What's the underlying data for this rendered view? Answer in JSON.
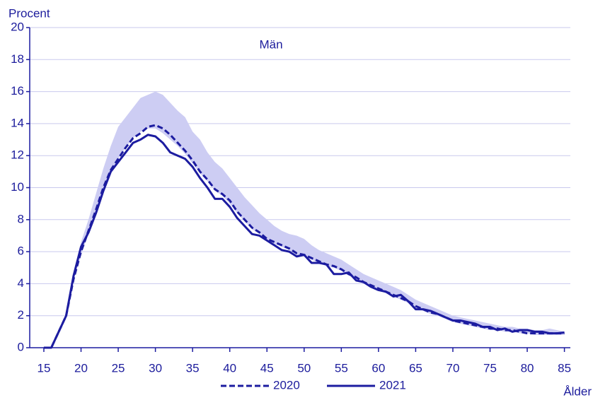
{
  "chart_data": {
    "type": "line",
    "annotation": "Män",
    "y_label": "Procent",
    "x_label": "Ålder",
    "x": [
      15,
      16,
      17,
      18,
      19,
      20,
      21,
      22,
      23,
      24,
      25,
      26,
      27,
      28,
      29,
      30,
      31,
      32,
      33,
      34,
      35,
      36,
      37,
      38,
      39,
      40,
      41,
      42,
      43,
      44,
      45,
      46,
      47,
      48,
      49,
      50,
      51,
      52,
      53,
      54,
      55,
      56,
      57,
      58,
      59,
      60,
      61,
      62,
      63,
      64,
      65,
      66,
      67,
      68,
      69,
      70,
      71,
      72,
      73,
      74,
      75,
      76,
      77,
      78,
      79,
      80,
      81,
      82,
      83,
      84,
      85
    ],
    "band": {
      "color": "#cdcdf3",
      "upper": [
        0,
        0,
        1,
        2.1,
        4.6,
        6.6,
        8,
        9.6,
        11.2,
        12.6,
        13.8,
        14.4,
        15.0,
        15.6,
        15.8,
        16.0,
        15.8,
        15.3,
        14.8,
        14.4,
        13.5,
        13.0,
        12.2,
        11.6,
        11.2,
        10.6,
        10.0,
        9.4,
        8.9,
        8.4,
        8.0,
        7.6,
        7.3,
        7.1,
        7.0,
        6.8,
        6.4,
        6.1,
        5.9,
        5.7,
        5.5,
        5.2,
        4.9,
        4.6,
        4.4,
        4.2,
        4.0,
        3.8,
        3.6,
        3.3,
        3.0,
        2.8,
        2.6,
        2.4,
        2.2,
        2.0,
        1.9,
        1.8,
        1.7,
        1.6,
        1.5,
        1.4,
        1.3,
        1.3,
        1.2,
        1.2,
        1.1,
        1.1,
        1.2,
        1.1,
        1.0
      ],
      "lower": [
        0,
        0,
        0.9,
        1.9,
        4.2,
        5.8,
        7.1,
        8.5,
        9.9,
        11.0,
        11.8,
        12.5,
        13.1,
        13.5,
        13.7,
        13.7,
        13.4,
        13.0,
        12.6,
        12.1,
        11.5,
        10.9,
        10.4,
        9.8,
        9.5,
        9.0,
        8.4,
        7.9,
        7.4,
        7.1,
        6.8,
        6.5,
        6.3,
        6.1,
        5.8,
        5.7,
        5.5,
        5.3,
        5.1,
        5.0,
        4.8,
        4.5,
        4.3,
        4.0,
        3.8,
        3.6,
        3.4,
        3.2,
        3.0,
        2.8,
        2.5,
        2.3,
        2.1,
        2.0,
        1.8,
        1.6,
        1.5,
        1.4,
        1.3,
        1.2,
        1.1,
        1.1,
        1.0,
        1.0,
        0.9,
        0.9,
        0.8,
        0.8,
        0.8,
        0.8,
        0.8
      ]
    },
    "series": [
      {
        "name": "2020",
        "color": "#1c1ca0",
        "dashed": true,
        "values": [
          0,
          0,
          1,
          2,
          4.3,
          6.0,
          7.3,
          8.6,
          10,
          11.1,
          11.8,
          12.5,
          13.1,
          13.4,
          13.8,
          13.9,
          13.7,
          13.3,
          12.8,
          12.3,
          11.7,
          11.0,
          10.5,
          9.9,
          9.6,
          9.2,
          8.5,
          8.0,
          7.5,
          7.2,
          6.8,
          6.6,
          6.4,
          6.2,
          5.9,
          5.8,
          5.6,
          5.4,
          5.2,
          5.1,
          4.9,
          4.6,
          4.4,
          4.1,
          3.9,
          3.7,
          3.5,
          3.3,
          3.1,
          2.9,
          2.6,
          2.4,
          2.2,
          2.1,
          1.9,
          1.7,
          1.6,
          1.5,
          1.4,
          1.3,
          1.2,
          1.2,
          1.1,
          1.1,
          1.0,
          0.9,
          0.9,
          0.9,
          0.9,
          0.9,
          0.9
        ]
      },
      {
        "name": "2021",
        "color": "#1c1ca0",
        "dashed": false,
        "values": [
          0,
          0,
          1,
          2,
          4.5,
          6.3,
          7.2,
          8.4,
          9.8,
          11,
          11.6,
          12.2,
          12.8,
          13.0,
          13.3,
          13.2,
          12.8,
          12.2,
          12.0,
          11.8,
          11.3,
          10.6,
          10.0,
          9.3,
          9.3,
          8.8,
          8.1,
          7.6,
          7.1,
          7.0,
          6.7,
          6.4,
          6.1,
          6.0,
          5.7,
          5.8,
          5.3,
          5.3,
          5.2,
          4.6,
          4.6,
          4.7,
          4.2,
          4.1,
          3.8,
          3.6,
          3.5,
          3.2,
          3.3,
          2.9,
          2.4,
          2.4,
          2.3,
          2.1,
          1.9,
          1.7,
          1.7,
          1.6,
          1.5,
          1.3,
          1.3,
          1.1,
          1.2,
          1.0,
          1.1,
          1.1,
          1.0,
          1.0,
          0.9,
          0.9,
          0.95
        ]
      }
    ],
    "xlim": [
      13.1,
      85.8
    ],
    "ylim": [
      0,
      20
    ],
    "xticks": [
      15,
      20,
      25,
      30,
      35,
      40,
      45,
      50,
      55,
      60,
      65,
      70,
      75,
      80,
      85
    ],
    "yticks": [
      0,
      2,
      4,
      6,
      8,
      10,
      12,
      14,
      16,
      18,
      20
    ],
    "grid": true,
    "legend": "bottom"
  }
}
